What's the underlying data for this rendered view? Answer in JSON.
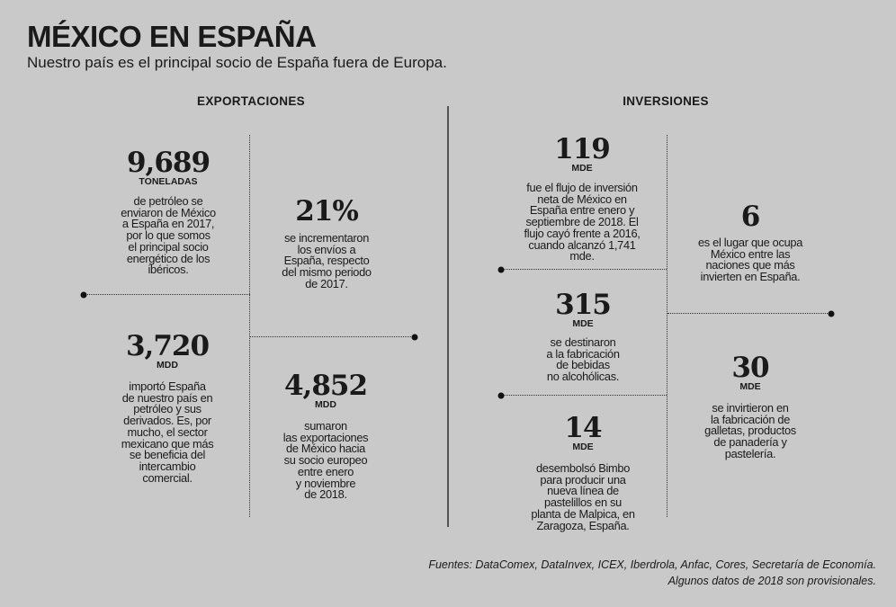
{
  "header": {
    "title": "MÉXICO EN ESPAÑA",
    "subtitle": "Nuestro país es el principal socio de España fuera de Europa."
  },
  "exportaciones": {
    "heading": "EXPORTACIONES",
    "items": [
      {
        "value": "9,689",
        "unit": "TONELADAS",
        "text": "de petróleo se\nenviaron de México\na España en 2017,\npor lo que somos\nel principal socio\nenergético de los\nibéricos."
      },
      {
        "value": "21%",
        "unit": "",
        "text": "se incrementaron\nlos envíos a\nEspaña, respecto\ndel mismo periodo\nde 2017."
      },
      {
        "value": "3,720",
        "unit": "MDD",
        "text": "importó España\nde nuestro país en\npetróleo y sus\nderivados. Es, por\nmucho, el sector\nmexicano que más\nse beneficia del\nintercambio\ncomercial."
      },
      {
        "value": "4,852",
        "unit": "MDD",
        "text": "sumaron\nlas exportaciones\nde México hacia\nsu socio europeo\nentre enero\ny noviembre\nde 2018."
      }
    ]
  },
  "inversiones": {
    "heading": "INVERSIONES",
    "items": [
      {
        "value": "119",
        "unit": "MDE",
        "text": "fue el flujo de inversión\nneta de México en\nEspaña entre enero y\nseptiembre de 2018. El\nflujo cayó frente a 2016,\ncuando alcanzó 1,741\nmde."
      },
      {
        "value": "6",
        "unit": "",
        "text": "es el lugar que ocupa\nMéxico entre las\nnaciones que más\ninvierten en España."
      },
      {
        "value": "315",
        "unit": "MDE",
        "text": "se destinaron\na la fabricación\nde bebidas\nno alcohólicas."
      },
      {
        "value": "30",
        "unit": "MDE",
        "text": "se invirtieron en\nla fabricación de\ngalletas, productos\nde panadería y\npastelería."
      },
      {
        "value": "14",
        "unit": "MDE",
        "text": "desembolsó Bimbo\npara producir una\nnueva línea de\npastelillos en su\nplanta de Malpica, en\nZaragoza, España."
      }
    ]
  },
  "footer": {
    "sources": "Fuentes: DataComex, DataInvex, ICEX, Iberdrola, Anfac, Cores, Secretaría de Economía.",
    "note": "Algunos datos de 2018 son provisionales."
  }
}
